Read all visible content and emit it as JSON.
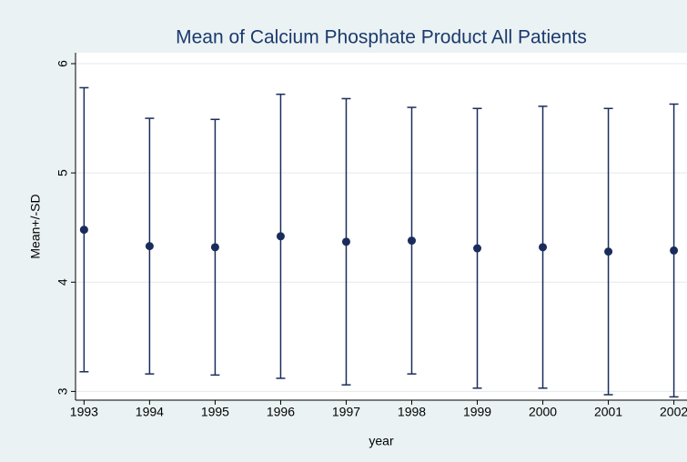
{
  "chart_data": {
    "type": "errorbar",
    "title": "Mean of Calcium  Phosphate Product All Patients",
    "x_label": "year",
    "y_label": "Mean+/-SD",
    "x": [
      1993,
      1994,
      1995,
      1996,
      1997,
      1998,
      1999,
      2000,
      2001,
      2002
    ],
    "values": [
      4.48,
      4.33,
      4.32,
      4.42,
      4.37,
      4.38,
      4.31,
      4.32,
      4.28,
      4.29
    ],
    "errors": [
      1.3,
      1.17,
      1.17,
      1.3,
      1.31,
      1.22,
      1.28,
      1.29,
      1.31,
      1.34
    ],
    "color": "#1a2c5b",
    "xlim": [
      1992.87,
      2002.2
    ],
    "xticks": [
      1993,
      1994,
      1995,
      1996,
      1997,
      1998,
      1999,
      2000,
      2001,
      2002
    ],
    "ylim": [
      2.92,
      6.1
    ],
    "yticks": [
      3,
      4,
      5,
      6
    ],
    "grid": true
  }
}
